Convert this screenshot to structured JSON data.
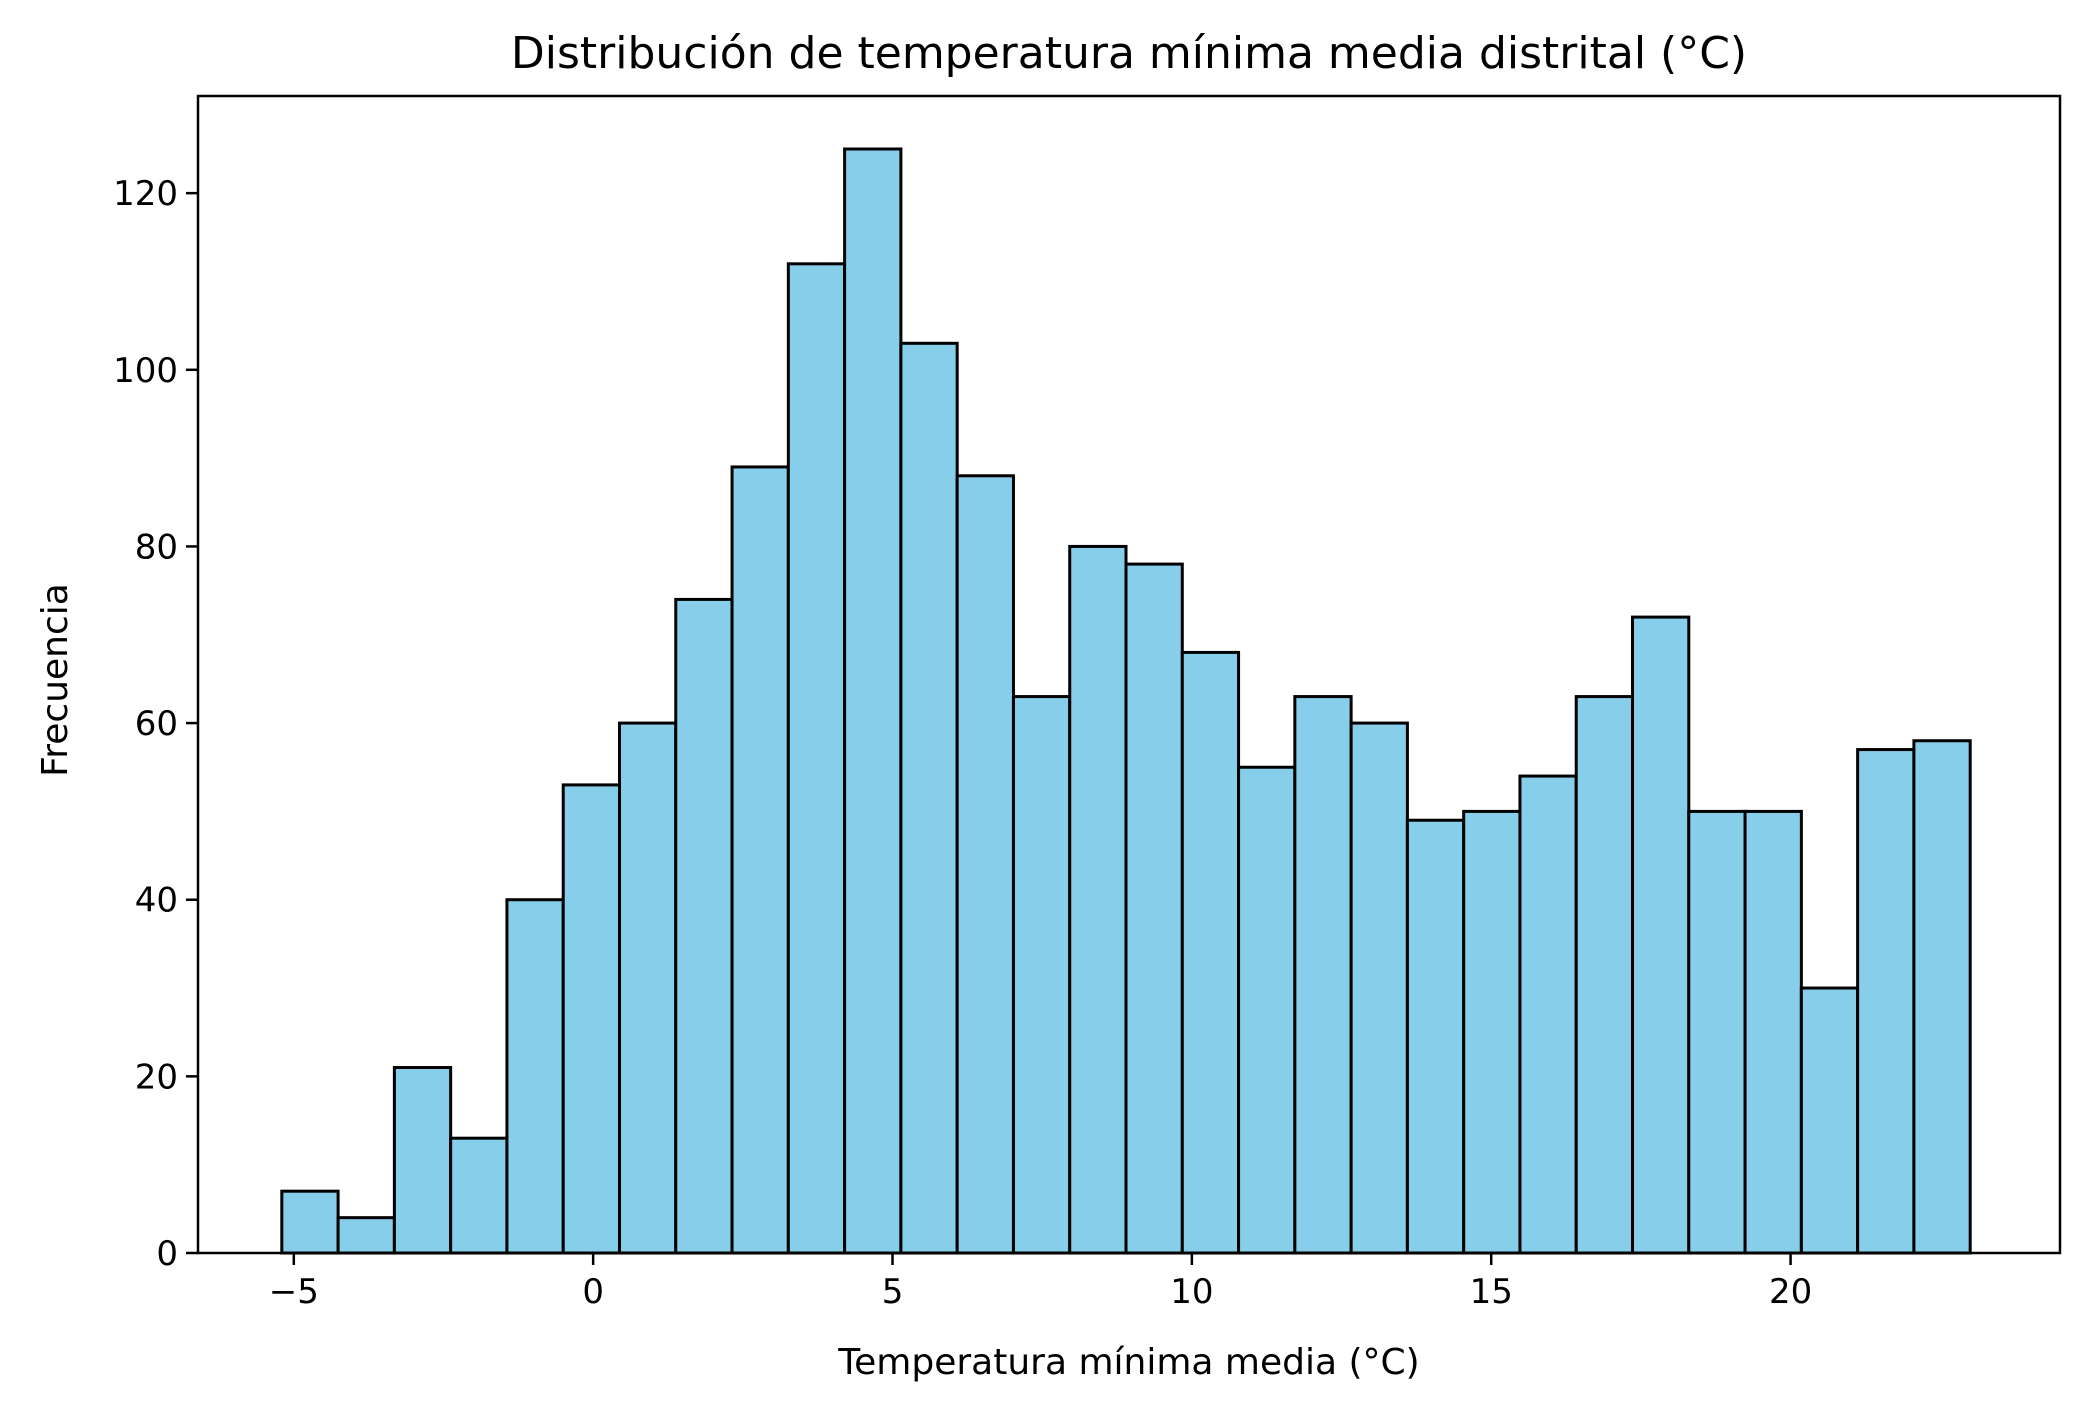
{
  "chart_data": {
    "type": "bar",
    "title": "Distribución de temperatura mínima media distrital (°C)",
    "xlabel": "Temperatura mínima media (°C)",
    "ylabel": "Frecuencia",
    "bin_start": -5.2,
    "bin_width": 0.94,
    "values": [
      7,
      4,
      21,
      13,
      40,
      53,
      60,
      74,
      89,
      112,
      125,
      103,
      88,
      63,
      80,
      78,
      68,
      55,
      63,
      60,
      49,
      50,
      54,
      63,
      72,
      50,
      50,
      30,
      57,
      58
    ],
    "xlim": [
      -6.6,
      24.5
    ],
    "ylim": [
      0,
      131
    ],
    "xticks": [
      -5,
      0,
      5,
      10,
      15,
      20
    ],
    "xtick_labels": [
      "−5",
      "0",
      "5",
      "10",
      "15",
      "20"
    ],
    "yticks": [
      0,
      20,
      40,
      60,
      80,
      100,
      120
    ],
    "ytick_labels": [
      "0",
      "20",
      "40",
      "60",
      "80",
      "100",
      "120"
    ],
    "bar_color": "#87ceeb",
    "edge_color": "#000000",
    "grid": false
  }
}
